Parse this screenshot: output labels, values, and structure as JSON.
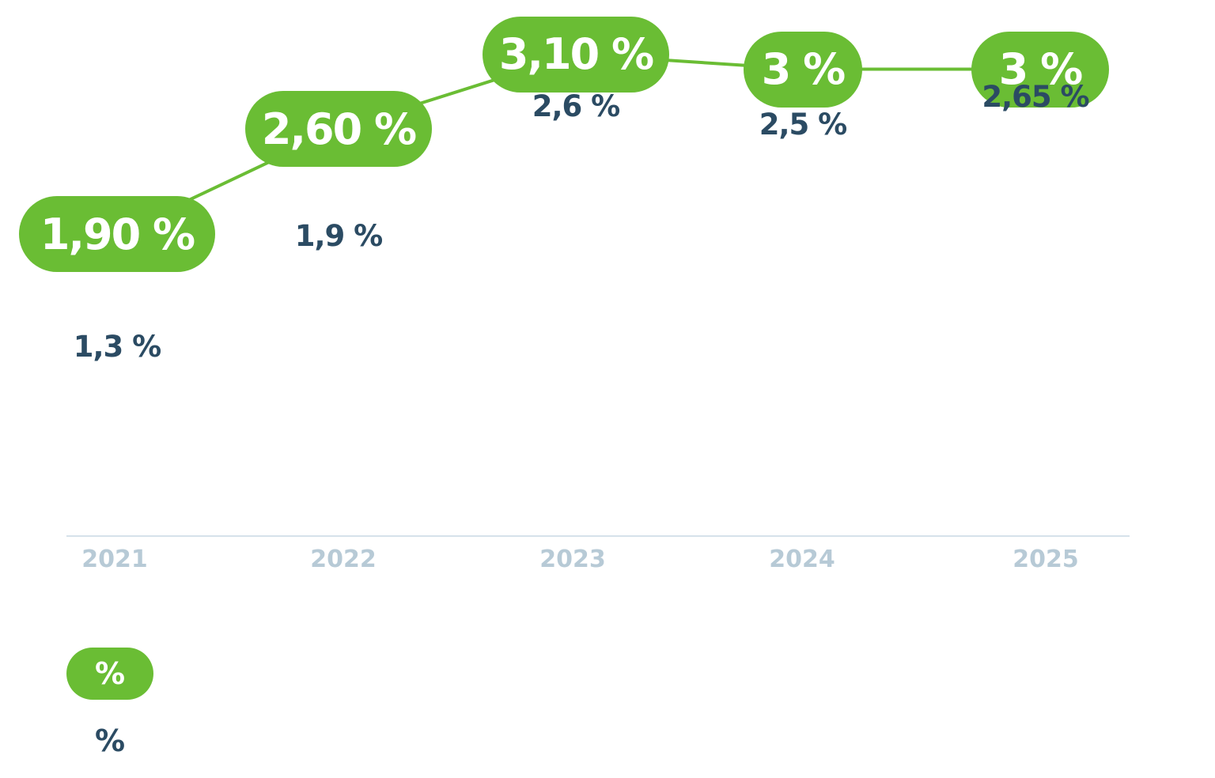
{
  "chart_data": {
    "type": "line",
    "categories": [
      "2021",
      "2022",
      "2023",
      "2024",
      "2025"
    ],
    "series": [
      {
        "values": [
          1.9,
          2.6,
          3.1,
          3.0,
          3.0
        ],
        "labels": [
          "1,90 %",
          "2,60 %",
          "3,10 %",
          "3 %",
          "3 %"
        ]
      },
      {
        "values": [
          1.3,
          1.9,
          2.6,
          2.5,
          2.65
        ],
        "labels": [
          "1,3 %",
          "1,9 %",
          "2,6 %",
          "2,5 %",
          "2,65 %"
        ]
      }
    ],
    "ylabel": "",
    "xlabel": ""
  },
  "legend": {
    "item1_symbol": "%",
    "item2_symbol": "%"
  },
  "colors": {
    "green": "#6abd34",
    "navy": "#2b4b63",
    "axis_text": "#b7cad6"
  }
}
